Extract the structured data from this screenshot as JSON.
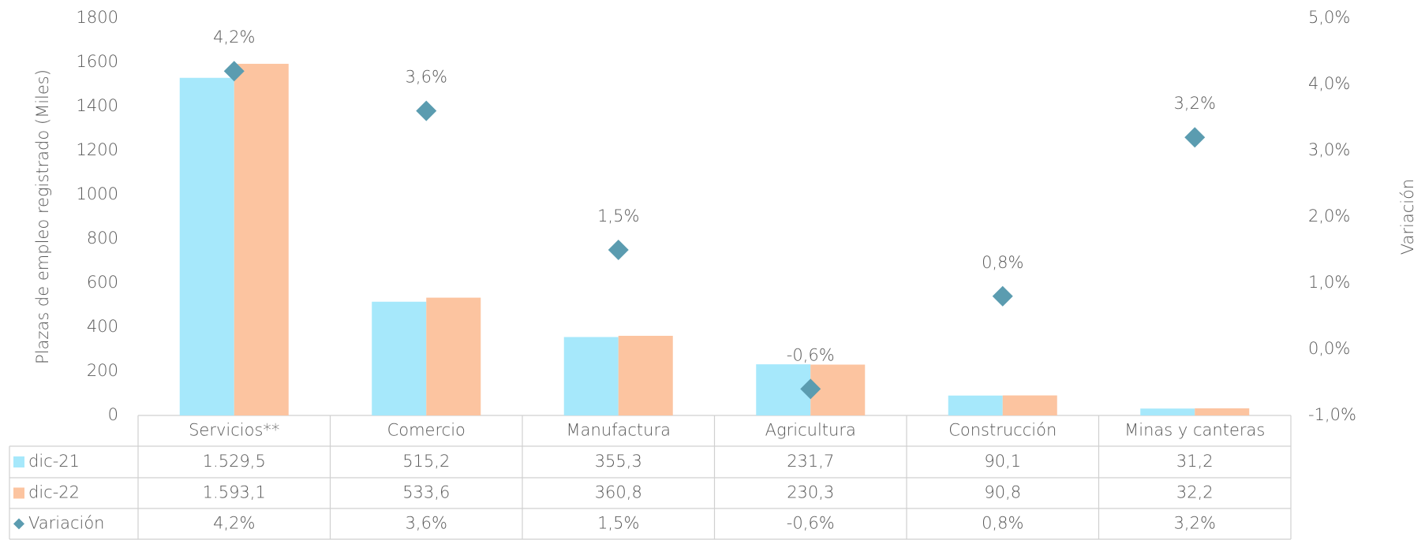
{
  "chart_data": {
    "type": "bar",
    "categories": [
      "Servicios**",
      "Comercio",
      "Manufactura",
      "Agricultura",
      "Construcción",
      "Minas y canteras"
    ],
    "ylabel": "Plazas de empleo registrado (Miles)",
    "y2label": "Variación",
    "ylim": [
      0,
      1800
    ],
    "yticks": [
      0,
      200,
      400,
      600,
      800,
      1000,
      1200,
      1400,
      1600,
      1800
    ],
    "y2lim": [
      -1,
      5
    ],
    "y2ticks": [
      {
        "value": -1,
        "label": "-1,0%"
      },
      {
        "value": 0,
        "label": "0,0%"
      },
      {
        "value": 1,
        "label": "1,0%"
      },
      {
        "value": 2,
        "label": "2,0%"
      },
      {
        "value": 3,
        "label": "3,0%"
      },
      {
        "value": 4,
        "label": "4,0%"
      },
      {
        "value": 5,
        "label": "5,0%"
      }
    ],
    "grid": false,
    "series": [
      {
        "name": "dic-21",
        "type": "bar",
        "color": "#a6e8fb",
        "values": [
          1529.5,
          515.2,
          355.3,
          231.7,
          90.1,
          31.2
        ],
        "value_labels": [
          "1.529,5",
          "515,2",
          "355,3",
          "231,7",
          "90,1",
          "31,2"
        ]
      },
      {
        "name": "dic-22",
        "type": "bar",
        "color": "#fcc4a0",
        "values": [
          1593.1,
          533.6,
          360.8,
          230.3,
          90.8,
          32.2
        ],
        "value_labels": [
          "1.593,1",
          "533,6",
          "360,8",
          "230,3",
          "90,8",
          "32,2"
        ]
      },
      {
        "name": "Variación",
        "type": "scatter",
        "axis": "y2",
        "color": "#5b9cb0",
        "values": [
          4.2,
          3.6,
          1.5,
          -0.6,
          0.8,
          3.2
        ],
        "value_labels": [
          "4,2%",
          "3,6%",
          "1,5%",
          "-0,6%",
          "0,8%",
          "3,2%"
        ]
      }
    ]
  }
}
